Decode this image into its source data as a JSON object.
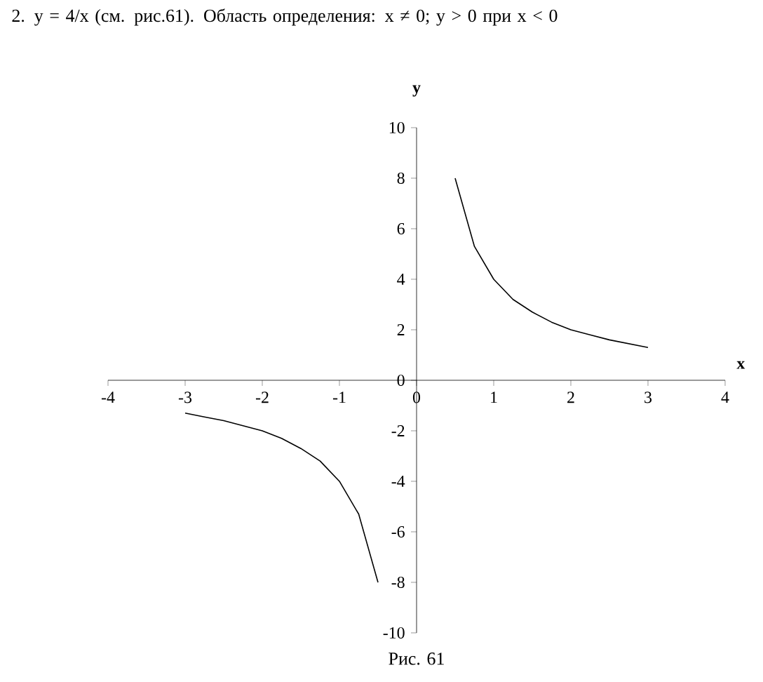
{
  "chart_data": {
    "type": "line",
    "title": "2. y = 4/x (см. рис.61). Область определения: x ≠ 0; y > 0 при x < 0",
    "xlabel": "x",
    "ylabel": "y",
    "annotations": [
      "Рис. 61"
    ],
    "xlim": [
      -4,
      4
    ],
    "ylim": [
      -10,
      10
    ],
    "xticks": [
      -4,
      -3,
      -2,
      -1,
      0,
      1,
      2,
      3,
      4
    ],
    "yticks": [
      -10,
      -8,
      -6,
      -4,
      -2,
      0,
      2,
      4,
      6,
      8,
      10
    ],
    "series": [
      {
        "color": "#000000",
        "x": [
          0.5,
          0.75,
          1,
          1.25,
          1.5,
          1.75,
          2,
          2.25,
          2.5,
          2.75,
          3
        ],
        "values": [
          8,
          5.3,
          4,
          3.2,
          2.7,
          2.3,
          2,
          1.8,
          1.6,
          1.45,
          1.3
        ]
      },
      {
        "color": "#000000",
        "x": [
          -3,
          -2.75,
          -2.5,
          -2.25,
          -2,
          -1.75,
          -1.5,
          -1.25,
          -1,
          -0.75,
          -0.5
        ],
        "values": [
          -1.3,
          -1.45,
          -1.6,
          -1.8,
          -2,
          -2.3,
          -2.7,
          -3.2,
          -4,
          -5.3,
          -8
        ]
      }
    ]
  }
}
